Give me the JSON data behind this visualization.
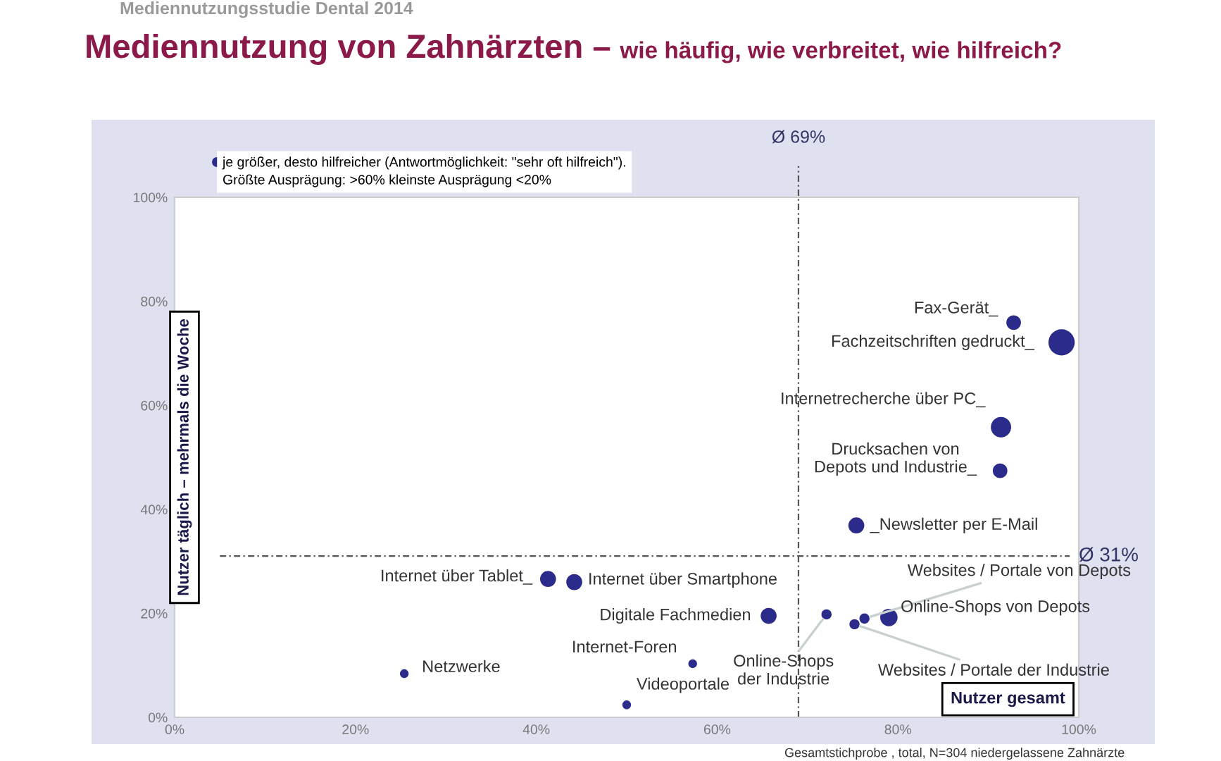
{
  "chart_data": {
    "type": "bubble",
    "title": "Mediennutzung von Zahnärzten –",
    "subtitle": "wie häufig, wie verbreitet, wie hilfreich?",
    "xlabel": "Nutzer gesamt",
    "ylabel": "Nutzer täglich – mehrmals die Woche",
    "series": [
      {
        "color": "#2b2b8c",
        "x": [
          92.8,
          98.1,
          91.4,
          91.3,
          75.4,
          41.3,
          44.2,
          65.7,
          72.1,
          76.3,
          75.2,
          79.0,
          57.3,
          25.4,
          50.0
        ],
        "values": [
          75.9,
          72.1,
          55.8,
          47.4,
          36.9,
          26.6,
          26.0,
          19.5,
          19.8,
          19.0,
          17.9,
          19.2,
          10.3,
          8.4,
          2.4
        ],
        "sizes": [
          0.31,
          1,
          0.6,
          0.31,
          0.37,
          0.37,
          0.37,
          0.37,
          0.15,
          0.15,
          0.15,
          0.44,
          0.11,
          0.11,
          0.11
        ]
      }
    ],
    "annotations": [
      "Mediennutzungsstudie Dental 2014",
      "je größer, desto hilfreicher (Antwortmöglichkeit: \"sehr oft hilfreich\").\nGrößte Ausprägung: >60% kleinste Ausprägung <20%",
      "Gesamtstichprobe , total, N=304 niedergelassene Zahnärzte",
      {
        "text": "Fax-Gerät_",
        "x": 92.8,
        "y": 75.9
      },
      {
        "text": "Fachzeitschriften gedruckt_",
        "x": 98.1,
        "y": 72.1
      },
      {
        "text": "Internetrecherche über PC_",
        "x": 91.4,
        "y": 55.8
      },
      {
        "text": "Drucksachen von\nDepots und Industrie_",
        "x": 91.3,
        "y": 47.4
      },
      {
        "text": "_Newsletter per E-Mail",
        "x": 75.4,
        "y": 36.9
      },
      {
        "text": "Internet über Tablet_",
        "x": 41.3,
        "y": 26.6
      },
      {
        "text": "Internet über Smartphone",
        "x": 44.2,
        "y": 26.0
      },
      {
        "text": "Digitale Fachmedien",
        "x": 65.7,
        "y": 19.5
      },
      {
        "text": "Online-Shops\nder Industrie",
        "x": 72.1,
        "y": 19.8
      },
      {
        "text": "Websites / Portale von Depots",
        "x": 76.3,
        "y": 19.0
      },
      {
        "text": "Websites / Portale der Industrie",
        "x": 75.2,
        "y": 17.9
      },
      {
        "text": "Online-Shops von Depots",
        "x": 79.0,
        "y": 19.2
      },
      {
        "text": "Internet-Foren",
        "x": 57.3,
        "y": 10.3
      },
      {
        "text": "Netzwerke",
        "x": 25.4,
        "y": 8.4
      },
      {
        "text": "Videoportale",
        "x": 50.0,
        "y": 2.4
      }
    ],
    "ref_lines": [
      {
        "axis": "x",
        "value": 69,
        "label": "Ø 69%"
      },
      {
        "axis": "y",
        "value": 31,
        "label": "Ø 31%"
      }
    ],
    "xlim": [
      0,
      100
    ],
    "ylim": [
      0,
      100
    ],
    "xticks": [
      {
        "value": 0,
        "label": "0%"
      },
      {
        "value": 20,
        "label": "20%"
      },
      {
        "value": 40,
        "label": "40%"
      },
      {
        "value": 60,
        "label": "60%"
      },
      {
        "value": 80,
        "label": "80%"
      },
      {
        "value": 100,
        "label": "100%"
      }
    ],
    "yticks": [
      {
        "value": 0,
        "label": "0%"
      },
      {
        "value": 20,
        "label": "20%"
      },
      {
        "value": 40,
        "label": "40%"
      },
      {
        "value": 60,
        "label": "60%"
      },
      {
        "value": 80,
        "label": "80%"
      },
      {
        "value": 100,
        "label": "100%"
      }
    ],
    "grid": false
  }
}
